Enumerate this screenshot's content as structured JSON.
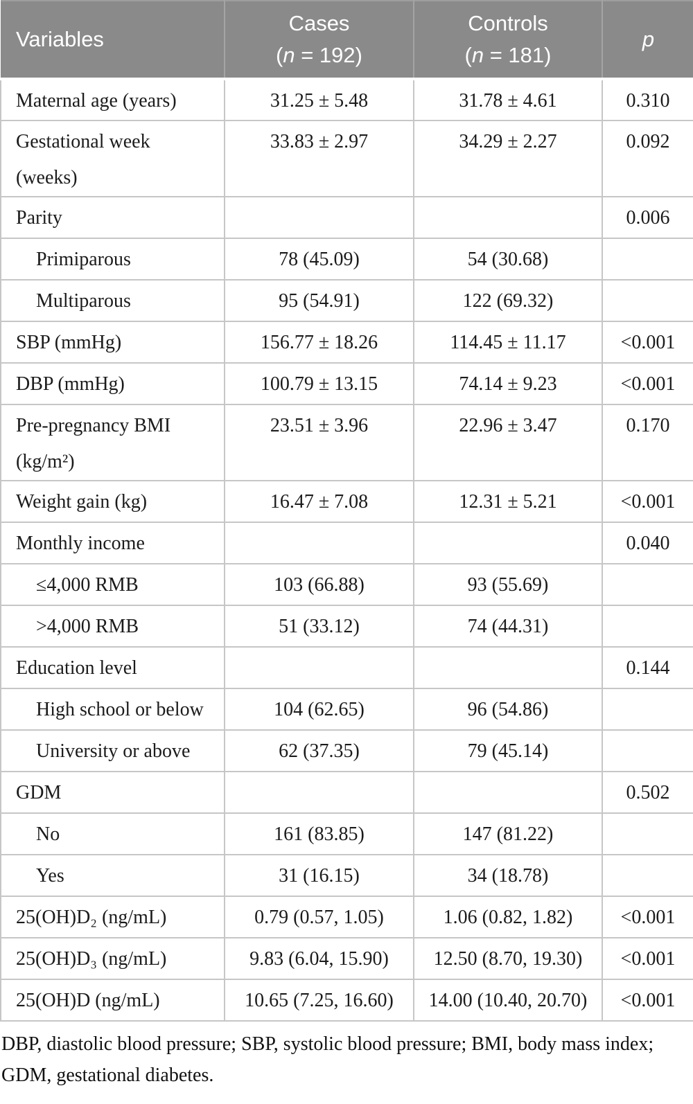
{
  "table": {
    "columns": [
      {
        "label": "Variables"
      },
      {
        "label": "Cases",
        "count_prefix": "(",
        "count_var": "n",
        "count_rest": " = 192)"
      },
      {
        "label": "Controls",
        "count_prefix": "(",
        "count_var": "n",
        "count_rest": " = 181)"
      },
      {
        "label": "p"
      }
    ],
    "rows": [
      {
        "variable": "Maternal age (years)",
        "cases": "31.25 ± 5.48",
        "controls": "31.78 ± 4.61",
        "p": "0.310",
        "indent": false,
        "tall": false
      },
      {
        "variable": "Gestational week",
        "variable_line2": "(weeks)",
        "cases": "33.83 ± 2.97",
        "controls": "34.29 ± 2.27",
        "p": "0.092",
        "indent": false,
        "tall": true
      },
      {
        "variable": "Parity",
        "cases": "",
        "controls": "",
        "p": "0.006",
        "indent": false,
        "tall": false
      },
      {
        "variable": "Primiparous",
        "cases": "78 (45.09)",
        "controls": "54 (30.68)",
        "p": "",
        "indent": true,
        "tall": false
      },
      {
        "variable": "Multiparous",
        "cases": "95 (54.91)",
        "controls": "122 (69.32)",
        "p": "",
        "indent": true,
        "tall": false
      },
      {
        "variable": "SBP (mmHg)",
        "cases": "156.77 ± 18.26",
        "controls": "114.45 ± 11.17",
        "p": "<0.001",
        "indent": false,
        "tall": false
      },
      {
        "variable": "DBP (mmHg)",
        "cases": "100.79 ± 13.15",
        "controls": "74.14 ± 9.23",
        "p": "<0.001",
        "indent": false,
        "tall": false
      },
      {
        "variable": "Pre-pregnancy BMI",
        "variable_line2": "(kg/m²)",
        "cases": "23.51 ± 3.96",
        "controls": "22.96 ± 3.47",
        "p": "0.170",
        "indent": false,
        "tall": true
      },
      {
        "variable": "Weight gain (kg)",
        "cases": "16.47 ± 7.08",
        "controls": "12.31 ± 5.21",
        "p": "<0.001",
        "indent": false,
        "tall": false
      },
      {
        "variable": "Monthly income",
        "cases": "",
        "controls": "",
        "p": "0.040",
        "indent": false,
        "tall": false
      },
      {
        "variable": "≤4,000 RMB",
        "cases": "103 (66.88)",
        "controls": "93 (55.69)",
        "p": "",
        "indent": true,
        "tall": false
      },
      {
        "variable": ">4,000 RMB",
        "cases": "51 (33.12)",
        "controls": "74 (44.31)",
        "p": "",
        "indent": true,
        "tall": false
      },
      {
        "variable": "Education level",
        "cases": "",
        "controls": "",
        "p": "0.144",
        "indent": false,
        "tall": false
      },
      {
        "variable": "High school or below",
        "cases": "104 (62.65)",
        "controls": "96 (54.86)",
        "p": "",
        "indent": true,
        "tall": false
      },
      {
        "variable": "University or above",
        "cases": "62 (37.35)",
        "controls": "79 (45.14)",
        "p": "",
        "indent": true,
        "tall": false
      },
      {
        "variable": "GDM",
        "cases": "",
        "controls": "",
        "p": "0.502",
        "indent": false,
        "tall": false
      },
      {
        "variable": "No",
        "cases": "161 (83.85)",
        "controls": "147 (81.22)",
        "p": "",
        "indent": true,
        "tall": false
      },
      {
        "variable": "Yes",
        "cases": "31 (16.15)",
        "controls": "34 (18.78)",
        "p": "",
        "indent": true,
        "tall": false
      },
      {
        "variable": "25(OH)D₂ (ng/mL)",
        "cases": "0.79 (0.57, 1.05)",
        "controls": "1.06 (0.82, 1.82)",
        "p": "<0.001",
        "indent": false,
        "tall": false
      },
      {
        "variable": "25(OH)D₃ (ng/mL)",
        "cases": "9.83 (6.04, 15.90)",
        "controls": "12.50 (8.70, 19.30)",
        "p": "<0.001",
        "indent": false,
        "tall": false
      },
      {
        "variable": "25(OH)D (ng/mL)",
        "cases": "10.65 (7.25, 16.60)",
        "controls": "14.00 (10.40, 20.70)",
        "p": "<0.001",
        "indent": false,
        "tall": false
      }
    ],
    "footnote": "DBP, diastolic blood pressure; SBP, systolic blood pressure; BMI, body mass index; GDM, gestational diabetes."
  }
}
